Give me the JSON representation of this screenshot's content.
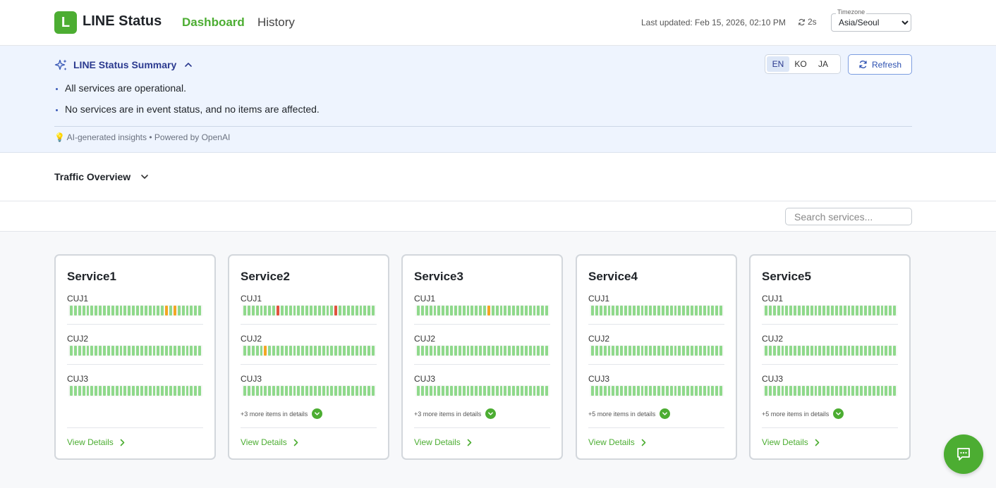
{
  "header": {
    "logo_letter": "L",
    "app_title": "LINE Status",
    "nav": {
      "dashboard": "Dashboard",
      "history": "History"
    },
    "last_updated": "Last updated: Feb 15, 2026, 02:10 PM",
    "refresh_interval": "2s",
    "timezone": {
      "label": "Timezone",
      "value": "Asia/Seoul"
    }
  },
  "summary": {
    "title": "LINE Status Summary",
    "languages": [
      "EN",
      "KO",
      "JA"
    ],
    "active_language": "EN",
    "refresh_label": "Refresh",
    "bullets": [
      "All services are operational.",
      "No services are in event status, and no items are affected."
    ],
    "footer": "💡 AI-generated insights • Powered by OpenAI"
  },
  "traffic": {
    "title": "Traffic Overview"
  },
  "search": {
    "placeholder": "Search services..."
  },
  "colors": {
    "green": "#8fd98b",
    "orange": "#f3a623",
    "red": "#e0533d",
    "accent": "#4cad32"
  },
  "services": [
    {
      "name": "Service1",
      "cujs": [
        {
          "label": "CUJ1",
          "issues": {
            "23": "orange",
            "25": "orange"
          }
        },
        {
          "label": "CUJ2",
          "issues": {}
        },
        {
          "label": "CUJ3",
          "issues": {}
        }
      ],
      "more": "",
      "view_details": "View Details"
    },
    {
      "name": "Service2",
      "cujs": [
        {
          "label": "CUJ1",
          "issues": {
            "8": "red",
            "22": "red"
          }
        },
        {
          "label": "CUJ2",
          "issues": {
            "5": "orange"
          }
        },
        {
          "label": "CUJ3",
          "issues": {}
        }
      ],
      "more": "+3 more items in details",
      "view_details": "View Details"
    },
    {
      "name": "Service3",
      "cujs": [
        {
          "label": "CUJ1",
          "issues": {
            "17": "orange"
          }
        },
        {
          "label": "CUJ2",
          "issues": {}
        },
        {
          "label": "CUJ3",
          "issues": {}
        }
      ],
      "more": "+3 more items in details",
      "view_details": "View Details"
    },
    {
      "name": "Service4",
      "cujs": [
        {
          "label": "CUJ1",
          "issues": {}
        },
        {
          "label": "CUJ2",
          "issues": {}
        },
        {
          "label": "CUJ3",
          "issues": {}
        }
      ],
      "more": "+5 more items in details",
      "view_details": "View Details"
    },
    {
      "name": "Service5",
      "cujs": [
        {
          "label": "CUJ1",
          "issues": {}
        },
        {
          "label": "CUJ2",
          "issues": {}
        },
        {
          "label": "CUJ3",
          "issues": {}
        }
      ],
      "more": "+5 more items in details",
      "view_details": "View Details"
    }
  ]
}
